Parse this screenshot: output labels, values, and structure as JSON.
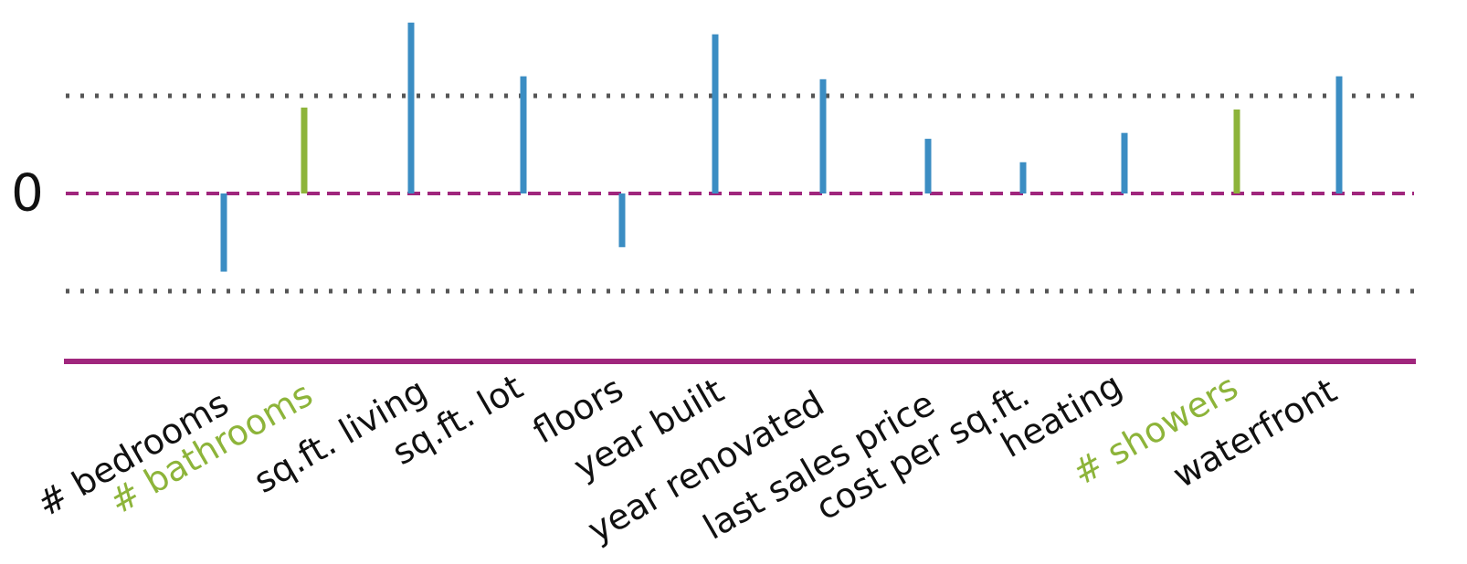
{
  "chart_data": {
    "type": "bar",
    "title": "",
    "xlabel": "",
    "ylabel": "",
    "y_tick_labels": [
      "0"
    ],
    "ylim": [
      -1.8,
      2.0
    ],
    "reference_lines": [
      {
        "value": 1.0,
        "style": "dotted",
        "color": "#555555"
      },
      {
        "value": -1.0,
        "style": "dotted",
        "color": "#555555"
      },
      {
        "value": 0,
        "style": "dashed",
        "color": "#a0267d"
      }
    ],
    "categories": [
      "# bedrooms",
      "# bathrooms",
      "sq.ft. living",
      "sq.ft. lot",
      "floors",
      "year built",
      "year renovated",
      "last sales price",
      "cost per sq.ft.",
      "heating",
      "# showers",
      "waterfront"
    ],
    "values": [
      -0.8,
      0.88,
      1.75,
      1.2,
      -0.55,
      1.63,
      1.17,
      0.56,
      0.32,
      0.62,
      0.86,
      1.2
    ],
    "highlighted": [
      false,
      true,
      false,
      false,
      false,
      false,
      false,
      false,
      false,
      false,
      true,
      false
    ],
    "colors": {
      "bar": "#3b8dc3",
      "highlight_bar": "#8db43a",
      "label": "#111111",
      "highlight_label": "#8db43a",
      "axis": "#a0267d"
    },
    "grid": false,
    "legend": "none"
  }
}
